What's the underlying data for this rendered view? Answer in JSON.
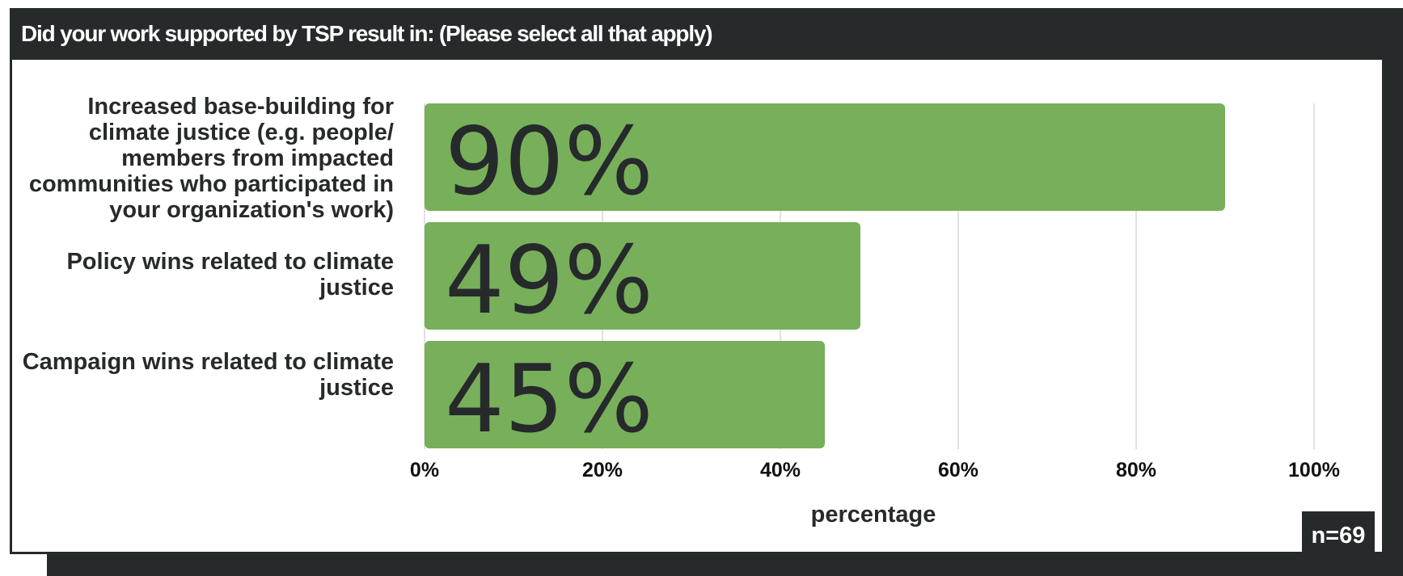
{
  "header": {
    "title": "Did your work supported by TSP result in: (Please select all that apply)"
  },
  "sample_size": "n=69",
  "colors": {
    "bar": "#78af5a",
    "frame": "#262a2b",
    "grid": "#d9d9d9"
  },
  "chart_data": {
    "type": "bar",
    "orientation": "horizontal",
    "categories": [
      "Increased base-building for climate justice (e.g. people/ members from impacted communities who participated in your organization's work)",
      "Policy wins related to climate justice",
      "Campaign wins related to climate justice"
    ],
    "values": [
      90,
      49,
      45
    ],
    "data_labels": [
      "90%",
      "49%",
      "45%"
    ],
    "xlabel": "percentage",
    "ylabel": "",
    "xlim": [
      0,
      100
    ],
    "xticks": [
      "0%",
      "20%",
      "40%",
      "60%",
      "80%",
      "100%"
    ],
    "grid": true
  }
}
